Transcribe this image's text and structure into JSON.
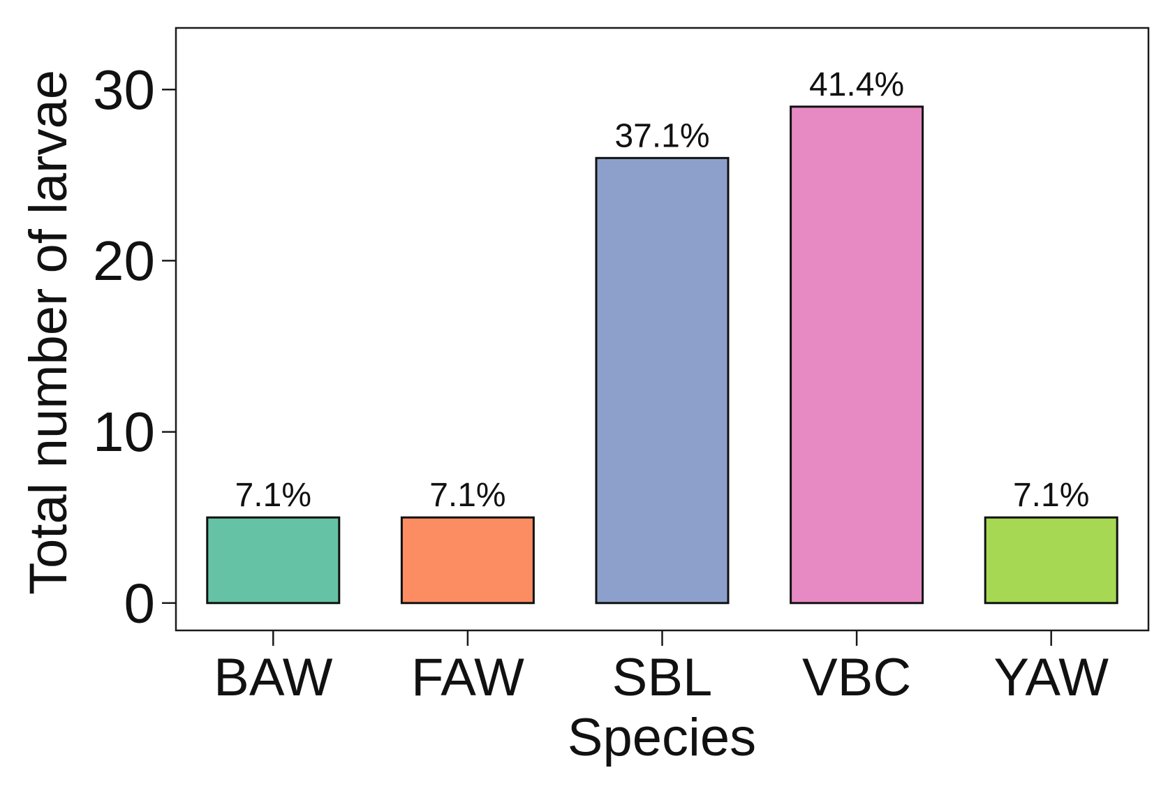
{
  "chart_data": {
    "type": "bar",
    "title": "",
    "xlabel": "Species",
    "ylabel": "Total number of larvae",
    "categories": [
      "BAW",
      "FAW",
      "SBL",
      "VBC",
      "YAW"
    ],
    "values": [
      5,
      5,
      26,
      29,
      5
    ],
    "data_labels": [
      "7.1%",
      "7.1%",
      "37.1%",
      "41.4%",
      "7.1%"
    ],
    "colors": [
      "#66c2a5",
      "#fc8d62",
      "#8da0cb",
      "#e78ac3",
      "#a6d854"
    ],
    "ylim": [
      -1.6,
      33.6
    ],
    "yticks": [
      0,
      10,
      20,
      30
    ],
    "ytick_labels": [
      "0",
      "10",
      "20",
      "30"
    ],
    "grid": false,
    "legend": "none"
  }
}
